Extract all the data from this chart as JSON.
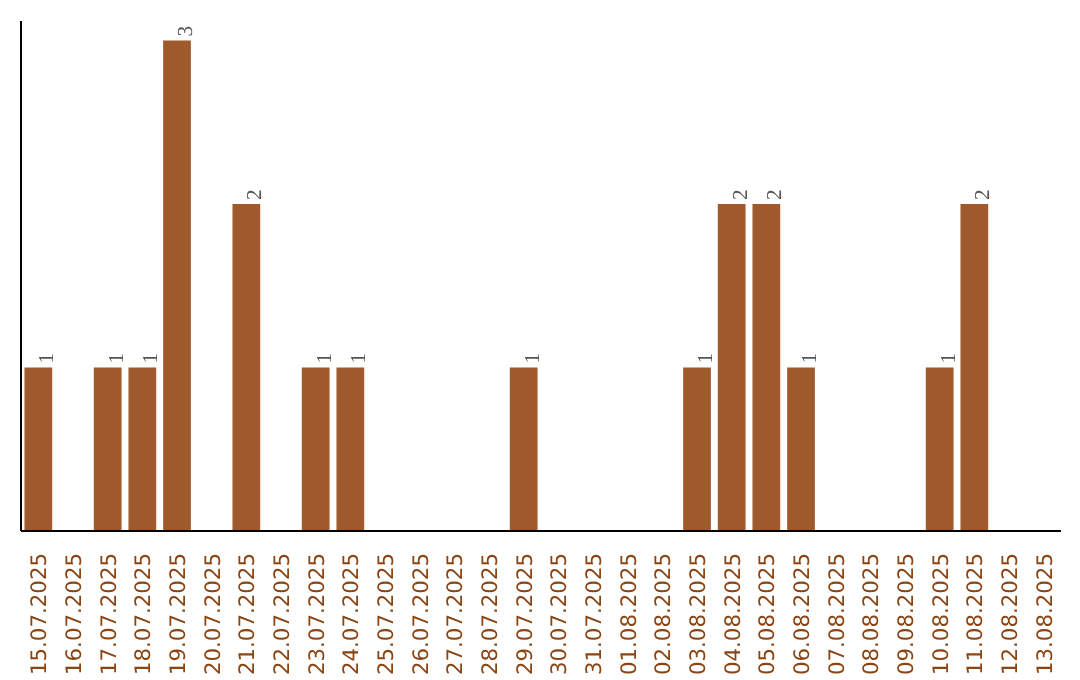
{
  "chart_data": {
    "type": "bar",
    "categories": [
      "15.07.2025",
      "16.07.2025",
      "17.07.2025",
      "18.07.2025",
      "19.07.2025",
      "20.07.2025",
      "21.07.2025",
      "22.07.2025",
      "23.07.2025",
      "24.07.2025",
      "25.07.2025",
      "26.07.2025",
      "27.07.2025",
      "28.07.2025",
      "29.07.2025",
      "30.07.2025",
      "31.07.2025",
      "01.08.2025",
      "02.08.2025",
      "03.08.2025",
      "04.08.2025",
      "05.08.2025",
      "06.08.2025",
      "07.08.2025",
      "08.08.2025",
      "09.08.2025",
      "10.08.2025",
      "11.08.2025",
      "12.08.2025",
      "13.08.2025"
    ],
    "values": [
      1,
      0,
      1,
      1,
      3,
      0,
      2,
      0,
      1,
      1,
      0,
      0,
      0,
      0,
      1,
      0,
      0,
      0,
      0,
      1,
      2,
      2,
      1,
      0,
      0,
      0,
      1,
      2,
      0,
      0
    ],
    "value_labels": [
      "1",
      null,
      "1",
      "1",
      "3",
      null,
      "2",
      null,
      "1",
      "1",
      null,
      null,
      null,
      null,
      "1",
      null,
      null,
      null,
      null,
      "1",
      "2",
      "2",
      "1",
      null,
      null,
      null,
      "1",
      "2",
      null,
      null
    ],
    "color": "#a0592b",
    "ylim": [
      0,
      3.12
    ],
    "tick_labels": "x",
    "grid": false
  }
}
